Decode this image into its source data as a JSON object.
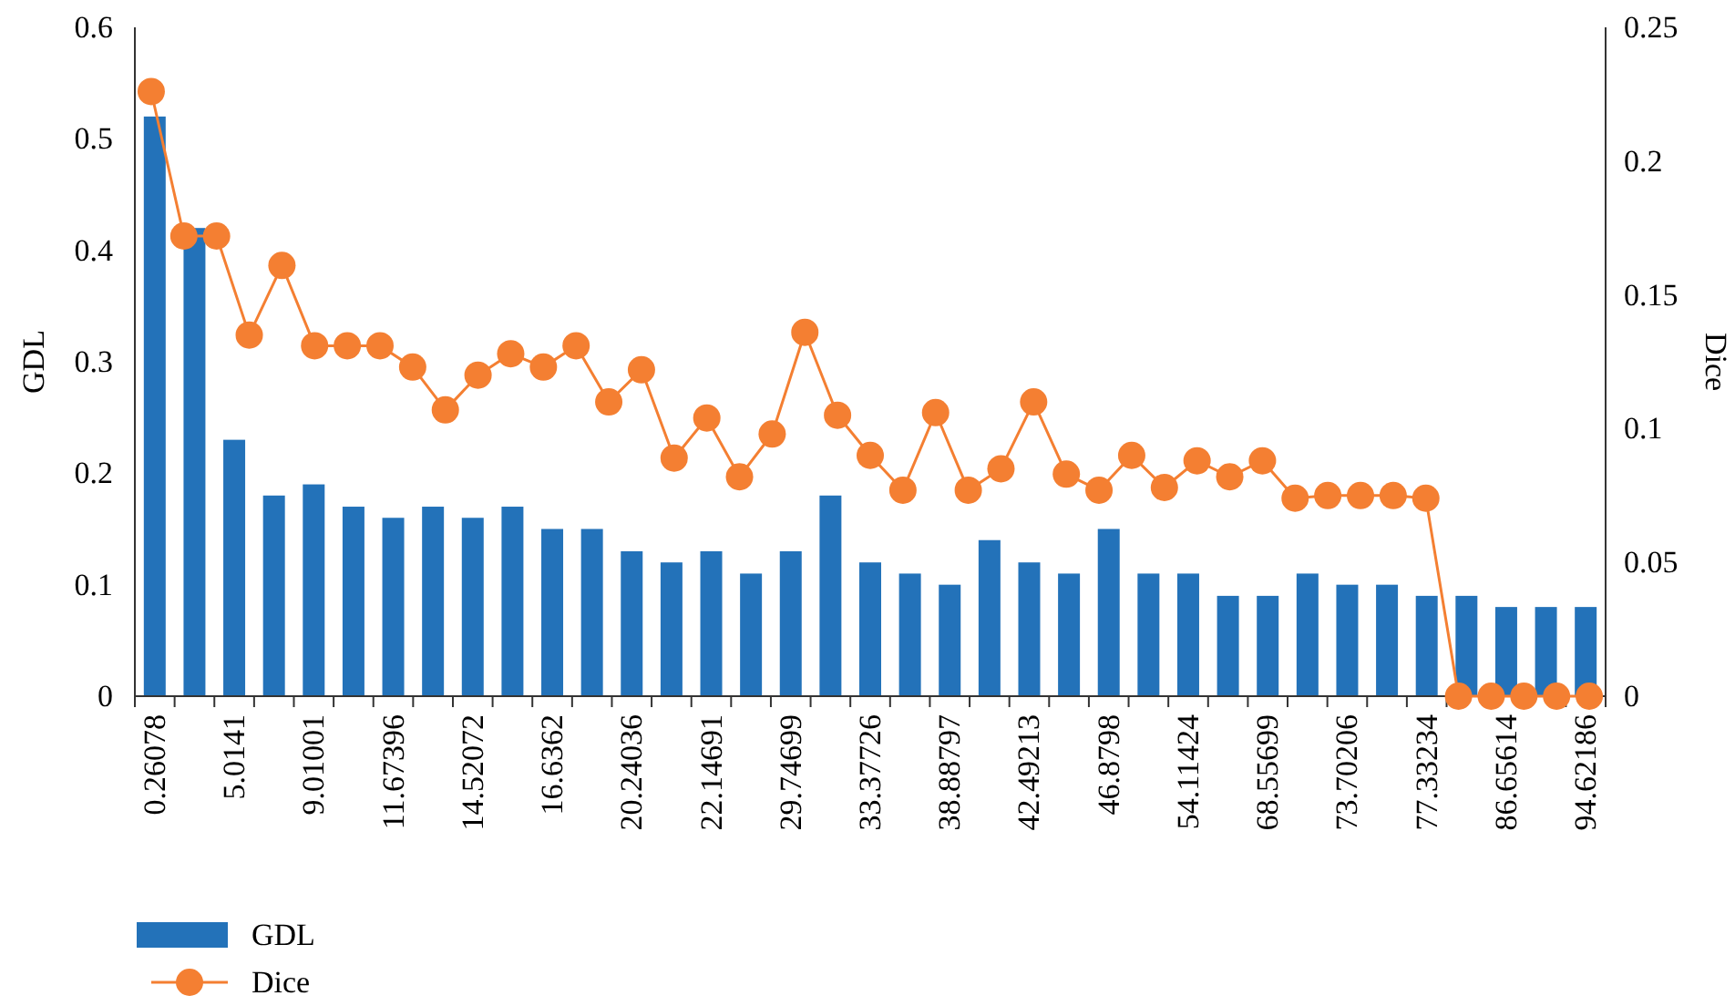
{
  "chart_data": [
    {
      "type": "bar",
      "ylabel": "GDL",
      "legend": "bottom left",
      "categories": [
        "0.26078",
        null,
        "5.0141",
        null,
        "9.01001",
        null,
        "11.67396",
        null,
        "14.52072",
        null,
        "16.6362",
        null,
        "20.24036",
        null,
        "22.14691",
        null,
        "29.74699",
        null,
        "33.37726",
        null,
        "38.88797",
        null,
        "42.49213",
        null,
        "46.8798",
        null,
        "54.11424",
        null,
        "68.55699",
        null,
        "73.70206",
        null,
        "77.33234",
        null,
        "86.65614",
        null,
        "94.62186"
      ],
      "series": [
        {
          "name": "GDL",
          "color": "#2372b9",
          "values": [
            0.52,
            0.42,
            0.23,
            0.18,
            0.19,
            0.17,
            0.16,
            0.17,
            0.16,
            0.17,
            0.15,
            0.15,
            0.13,
            0.12,
            0.13,
            0.11,
            0.13,
            0.18,
            0.12,
            0.11,
            0.1,
            0.14,
            0.12,
            0.11,
            0.15,
            0.11,
            0.11,
            0.09,
            0.09,
            0.11,
            0.1,
            0.1,
            0.09,
            0.09,
            0.08,
            0.08,
            0.08
          ]
        }
      ],
      "ylim": [
        0,
        0.6
      ],
      "yticks": [
        0,
        0.1,
        0.2,
        0.3,
        0.4,
        0.5,
        0.6
      ]
    },
    {
      "type": "line",
      "ylabel": "Dice",
      "legend": "bottom left",
      "marker": "circle",
      "categories": [
        null,
        null,
        null,
        null,
        null,
        null,
        null,
        null,
        null,
        null,
        null,
        null,
        null,
        null,
        null,
        null,
        null,
        null,
        null,
        null,
        null,
        null,
        null,
        null,
        null,
        null,
        null,
        null,
        null,
        null,
        null,
        null,
        null,
        null,
        null,
        null,
        null,
        null,
        null,
        null,
        null,
        null,
        null,
        null,
        null
      ],
      "series": [
        {
          "name": "Dice",
          "color": "#f47f32",
          "values": [
            0.226,
            0.172,
            0.172,
            0.135,
            0.161,
            0.131,
            0.131,
            0.131,
            0.123,
            0.107,
            0.12,
            0.128,
            0.123,
            0.131,
            0.11,
            0.122,
            0.089,
            0.104,
            0.082,
            0.098,
            0.136,
            0.105,
            0.09,
            0.077,
            0.106,
            0.077,
            0.085,
            0.11,
            0.083,
            0.077,
            0.09,
            0.078,
            0.088,
            0.082,
            0.088,
            0.074,
            0.075,
            0.075,
            0.075,
            0.074,
            0,
            0,
            0,
            0,
            0
          ]
        }
      ],
      "ylim": [
        0,
        0.25
      ],
      "yticks": [
        0,
        0.05,
        0.1,
        0.15,
        0.2,
        0.25
      ]
    }
  ]
}
